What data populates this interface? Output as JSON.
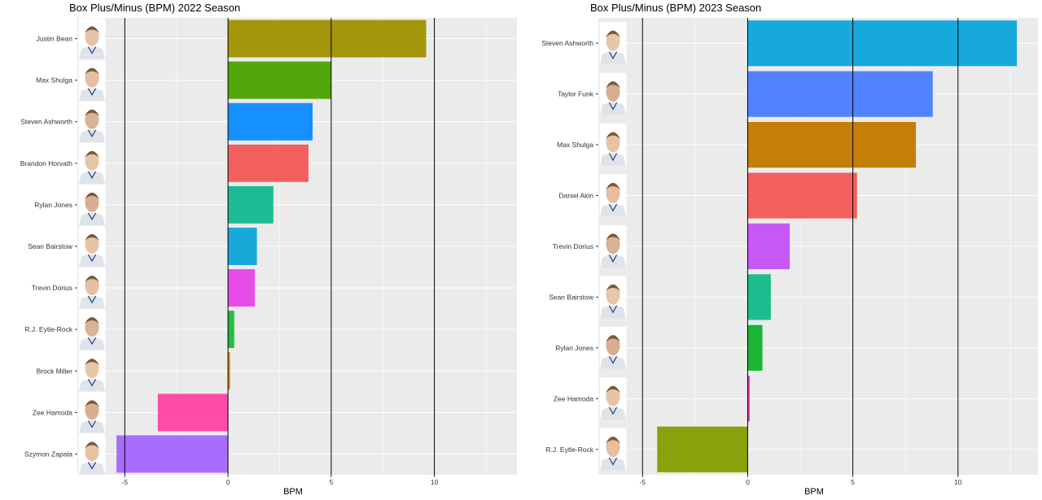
{
  "chart_data": [
    {
      "type": "bar",
      "orientation": "horizontal",
      "title": "Box Plus/Minus (BPM) 2022 Season",
      "xlabel": "BPM",
      "ylabel": "",
      "xlim": [
        -7.3,
        14
      ],
      "xticks": [
        -5,
        0,
        5,
        10
      ],
      "grid": true,
      "legend": "none",
      "reference_lines": [
        -5,
        0,
        5,
        10
      ],
      "categories": [
        "Justin Bean",
        "Max Shulga",
        "Steven Ashworth",
        "Brandon Horvath",
        "Rylan Jones",
        "Sean Bairstow",
        "Trevin Dorius",
        "R.J. Eytle-Rock",
        "Brock Miller",
        "Zee Hamoda",
        "Szymon Zapala"
      ],
      "values": [
        9.6,
        5.0,
        4.1,
        3.9,
        2.2,
        1.4,
        1.3,
        0.3,
        0.1,
        -3.4,
        -5.4
      ],
      "colors": [
        "#A3960A",
        "#53A70A",
        "#1790FF",
        "#F2605D",
        "#1DBC97",
        "#17A9D8",
        "#E74CE9",
        "#24BB40",
        "#D7870E",
        "#FF4AA8",
        "#A86CFF"
      ],
      "headshot_icons": [
        "player-photo-icon",
        "player-photo-icon",
        "player-photo-icon",
        "player-photo-icon",
        "player-photo-icon",
        "player-photo-icon",
        "player-photo-icon",
        "player-photo-icon",
        "player-photo-icon",
        "player-photo-icon",
        "player-photo-icon"
      ]
    },
    {
      "type": "bar",
      "orientation": "horizontal",
      "title": "Box Plus/Minus (BPM) 2023 Season",
      "xlabel": "BPM",
      "ylabel": "",
      "xlim": [
        -7.1,
        13.8
      ],
      "xticks": [
        -5,
        0,
        5,
        10
      ],
      "grid": true,
      "legend": "none",
      "reference_lines": [
        -5,
        0,
        5,
        10
      ],
      "categories": [
        "Steven Ashworth",
        "Taylor Funk",
        "Max Shulga",
        "Daniel Akin",
        "Trevin Dorius",
        "Sean Bairstow",
        "Rylan Jones",
        "Zee Hamoda",
        "R.J. Eytle-Rock"
      ],
      "values": [
        12.8,
        8.8,
        8.0,
        5.2,
        2.0,
        1.1,
        0.7,
        0.1,
        -4.3
      ],
      "colors": [
        "#17A9DC",
        "#5183FF",
        "#C47F08",
        "#F2605D",
        "#C658F5",
        "#1DBC8E",
        "#1AB532",
        "#E83FB3",
        "#87A20B"
      ],
      "headshot_icons": [
        "player-photo-icon",
        "player-photo-icon",
        "player-photo-icon",
        "player-photo-icon",
        "player-photo-icon",
        "player-photo-icon",
        "player-photo-icon",
        "player-photo-icon",
        "player-photo-icon"
      ]
    }
  ]
}
